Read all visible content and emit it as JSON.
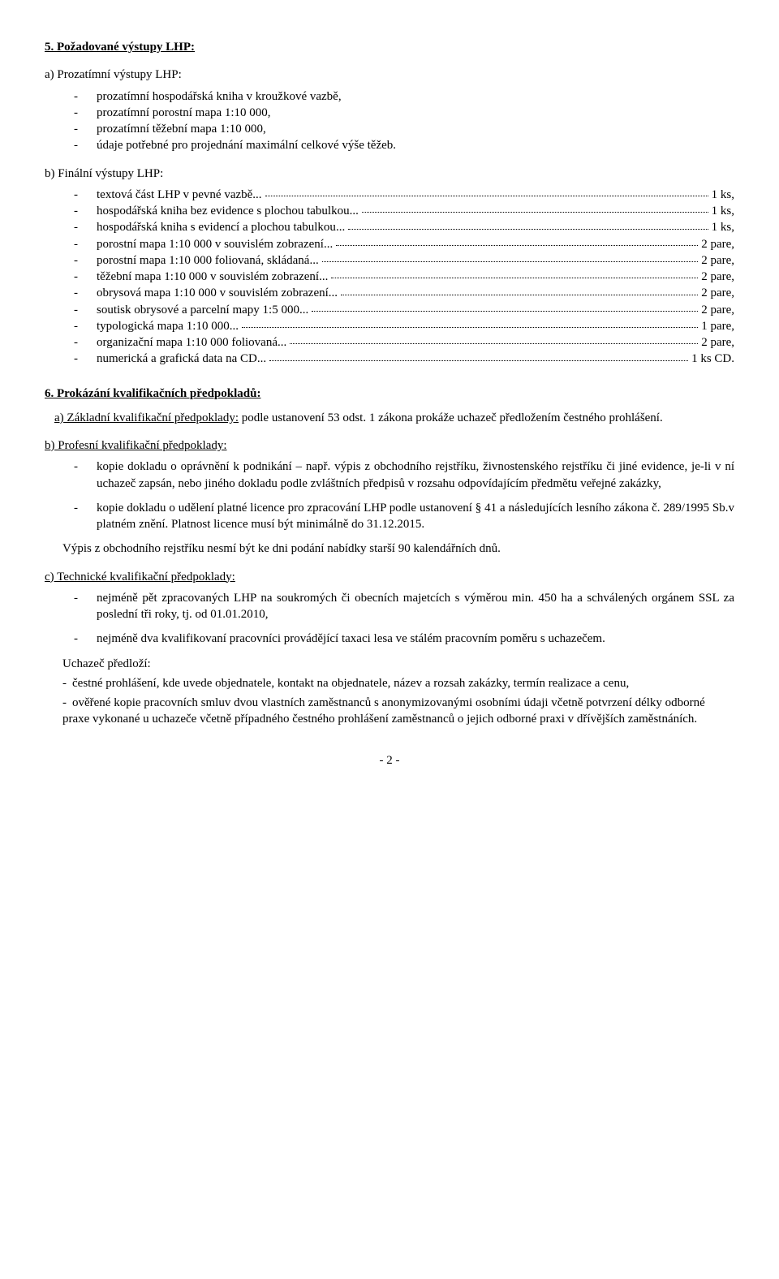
{
  "section5": {
    "title": "5. Požadované výstupy LHP:",
    "a": {
      "title": "a) Prozatímní výstupy LHP:",
      "items": [
        "prozatímní hospodářská kniha v kroužkové vazbě,",
        "prozatímní porostní mapa 1:10 000,",
        "prozatímní těžební mapa 1:10 000,",
        "údaje potřebné pro projednání maximální celkové výše těžeb."
      ]
    },
    "b": {
      "title": "b) Finální výstupy LHP:",
      "dot_leader": " ...",
      "items": [
        {
          "label": "textová část LHP v pevné vazbě",
          "value": "1 ks,"
        },
        {
          "label": "hospodářská kniha bez evidence s plochou tabulkou",
          "value": "1 ks,"
        },
        {
          "label": "hospodářská kniha s evidencí a plochou tabulkou",
          "value": "1 ks,"
        },
        {
          "label": "porostní mapa 1:10 000 v souvislém zobrazení",
          "value": "2 pare,"
        },
        {
          "label": "porostní mapa 1:10 000 foliovaná, skládaná",
          "value": "2 pare,"
        },
        {
          "label": "těžební mapa 1:10 000 v souvislém zobrazení",
          "value": "2 pare,"
        },
        {
          "label": "obrysová mapa 1:10 000 v souvislém zobrazení",
          "value": "2 pare,"
        },
        {
          "label": "soutisk obrysové a parcelní mapy 1:5 000",
          "value": "2 pare,"
        },
        {
          "label": "typologická mapa 1:10 000",
          "value": "1 pare,"
        },
        {
          "label": "organizační mapa 1:10 000 foliovaná",
          "value": "2 pare,"
        },
        {
          "label": "numerická a grafická data na CD",
          "value": "1 ks CD."
        }
      ]
    }
  },
  "section6": {
    "title": "6. Prokázání kvalifikačních předpokladů:",
    "a": {
      "label_u": "a) Základní kvalifikační předpoklady:",
      "rest": " podle ustanovení 53 odst. 1 zákona prokáže uchazeč předložením čestného prohlášení."
    },
    "b": {
      "title": "b) Profesní kvalifikační předpoklady:",
      "items": [
        "kopie dokladu o oprávnění k podnikání – např. výpis z obchodního rejstříku, živnostenského rejstříku či jiné evidence, je-li v ní uchazeč zapsán, nebo jiného dokladu podle zvláštních předpisů v rozsahu odpovídajícím předmětu veřejné zakázky,",
        "kopie dokladu o udělení platné licence pro zpracování LHP podle ustanovení § 41 a následujících lesního zákona č. 289/1995 Sb.v platném znění. Platnost licence musí být minimálně do 31.12.2015."
      ],
      "note": "Výpis z obchodního rejstříku  nesmí být ke dni podání nabídky starší 90 kalendářních dnů."
    },
    "c": {
      "title": "c) Technické kvalifikační předpoklady:",
      "items": [
        "nejméně pět zpracovaných LHP na soukromých či obecních majetcích s výměrou min. 450 ha a schválených orgánem SSL za poslední tři roky, tj. od 01.01.2010,",
        "nejméně dva kvalifikovaní pracovníci provádějící taxaci lesa ve stálém pracovním poměru s uchazečem."
      ],
      "predlozi": {
        "intro": "Uchazeč  předloží:",
        "items": [
          "čestné prohlášení, kde uvede objednatele, kontakt na objednatele, název a rozsah zakázky, termín realizace a cenu,",
          "ověřené kopie pracovních smluv dvou vlastních zaměstnanců s anonymizovanými osobními údaji včetně potvrzení délky odborné praxe vykonané u uchazeče  včetně případného čestného prohlášení zaměstnanců o jejich odborné praxi v dřívějších zaměstnáních."
        ]
      }
    }
  },
  "page": "- 2 -"
}
